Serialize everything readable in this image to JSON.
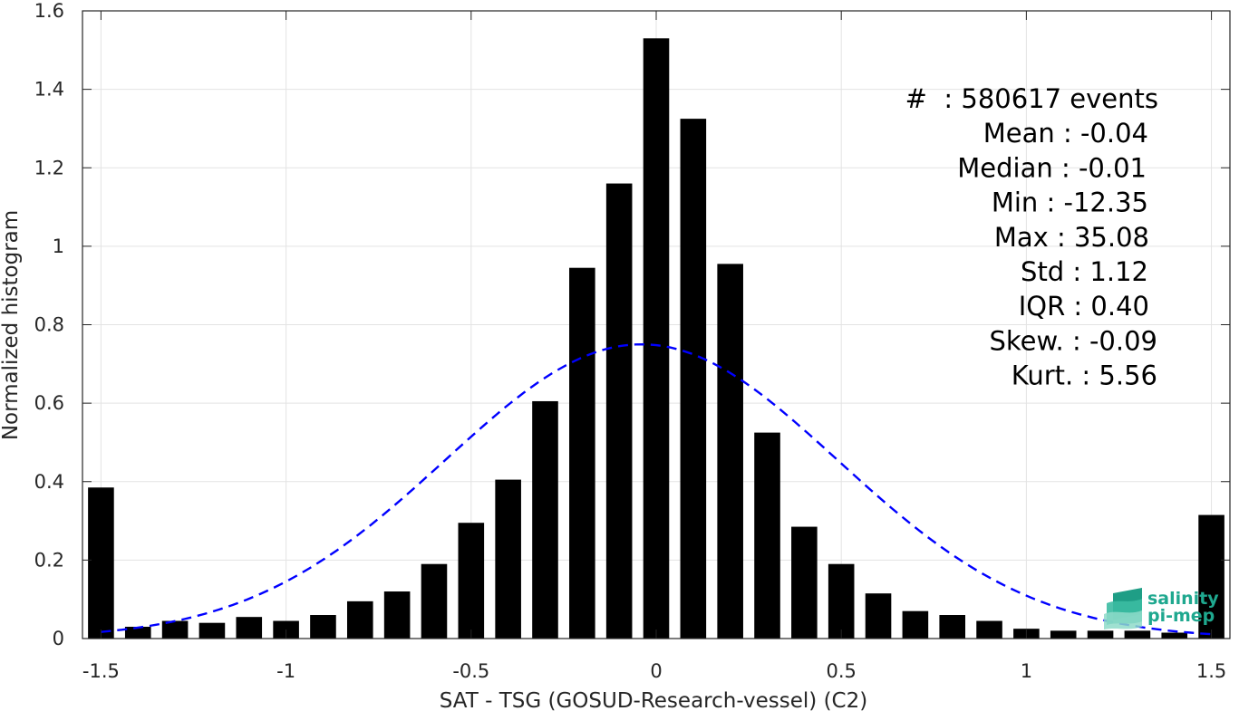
{
  "chart_data": {
    "type": "bar",
    "xlabel": "SAT - TSG (GOSUD-Research-vessel) (C2)",
    "ylabel": "Normalized histogram",
    "xlim": [
      -1.55,
      1.55
    ],
    "ylim": [
      0,
      1.6
    ],
    "xticks": [
      -1.5,
      -1,
      -0.5,
      0,
      0.5,
      1,
      1.5
    ],
    "xtick_labels": [
      "-1.5",
      "-1",
      "-0.5",
      "0",
      "0.5",
      "1",
      "1.5"
    ],
    "yticks": [
      0,
      0.2,
      0.4,
      0.6,
      0.8,
      1,
      1.2,
      1.4,
      1.6
    ],
    "ytick_labels": [
      "0",
      "0.2",
      "0.4",
      "0.6",
      "0.8",
      "1",
      "1.2",
      "1.4",
      "1.6"
    ],
    "grid": true,
    "bar_color": "#000000",
    "bar_width": 0.07,
    "x": [
      -1.5,
      -1.4,
      -1.3,
      -1.2,
      -1.1,
      -1.0,
      -0.9,
      -0.8,
      -0.7,
      -0.6,
      -0.5,
      -0.4,
      -0.3,
      -0.2,
      -0.1,
      0.0,
      0.1,
      0.2,
      0.3,
      0.4,
      0.5,
      0.6,
      0.7,
      0.8,
      0.9,
      1.0,
      1.1,
      1.2,
      1.3,
      1.4,
      1.5
    ],
    "values": [
      0.385,
      0.03,
      0.045,
      0.04,
      0.055,
      0.045,
      0.06,
      0.095,
      0.12,
      0.19,
      0.295,
      0.405,
      0.605,
      0.945,
      1.16,
      1.53,
      1.325,
      0.955,
      0.525,
      0.285,
      0.19,
      0.115,
      0.07,
      0.06,
      0.045,
      0.025,
      0.02,
      0.02,
      0.02,
      0.015,
      0.315
    ],
    "fit_curve": {
      "type": "normal",
      "mean": -0.04,
      "std": 0.53,
      "peak": 0.75,
      "x_range": [
        -1.5,
        1.5
      ],
      "color": "#0000ff",
      "style": "dashed"
    },
    "stats_lines": [
      "#  : 580617 events",
      "Mean : -0.04",
      "Median : -0.01",
      "Min : -12.35",
      "Max : 35.08",
      "Std : 1.12",
      "IQR : 0.40",
      "Skew. : -0.09",
      "Kurt. : 5.56"
    ]
  },
  "logo": {
    "line1": "salinity",
    "line2": "pi-mep",
    "color": "#1fa88f"
  }
}
